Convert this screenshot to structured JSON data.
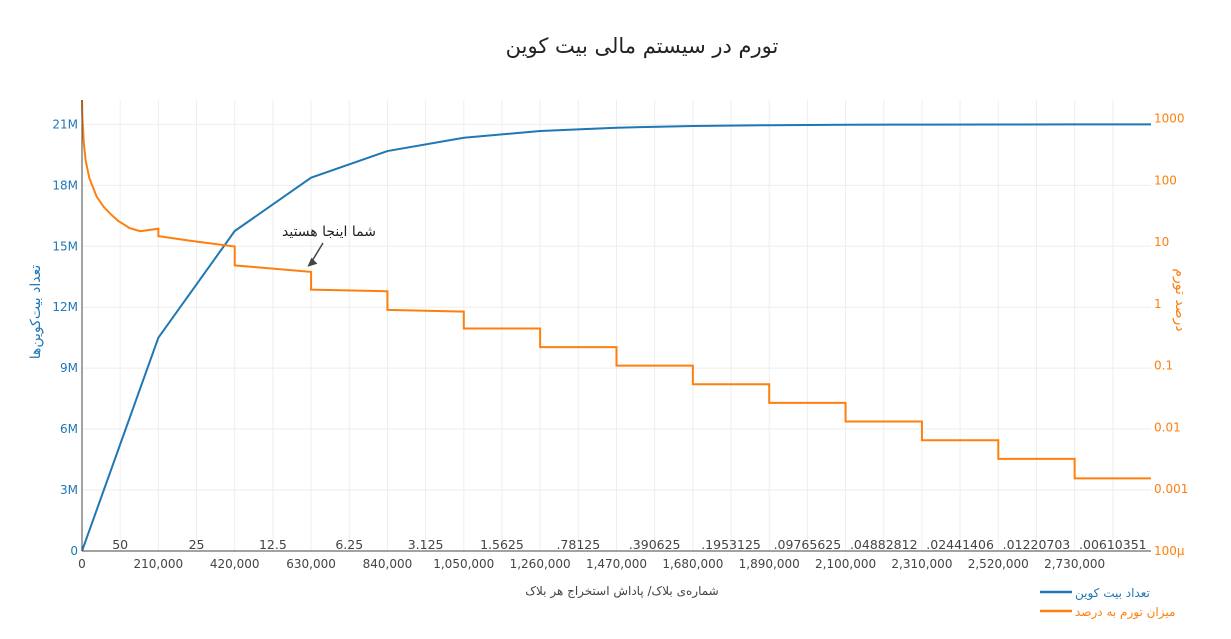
{
  "chart_data": {
    "type": "line",
    "title": "تورم در سیستم مالی بیت کوین",
    "xlabel": "شماره‌ی بلاک/ پاداش استخراج هر بلاک",
    "ylabel_left": "تعداد بیت‌کوین‌ها",
    "ylabel_right": "درصد تورم",
    "x_ticks": [
      "0",
      "210,000",
      "420,000",
      "630,000",
      "840,000",
      "1,050,000",
      "1,260,000",
      "1,470,000",
      "1,680,000",
      "1,890,000",
      "2,100,000",
      "2,310,000",
      "2,520,000",
      "2,730,000"
    ],
    "x_tick_values": [
      0,
      210000,
      420000,
      630000,
      840000,
      1050000,
      1260000,
      1470000,
      1680000,
      1890000,
      2100000,
      2310000,
      2520000,
      2730000
    ],
    "xlim": [
      0,
      2940000
    ],
    "y_left_ticks": [
      "0",
      "3M",
      "6M",
      "9M",
      "12M",
      "15M",
      "18M",
      "21M"
    ],
    "y_left_tick_values": [
      0,
      3000000,
      6000000,
      9000000,
      12000000,
      15000000,
      18000000,
      21000000
    ],
    "ylim_left": [
      0,
      22200000
    ],
    "y_right_ticks": [
      "100µ",
      "0.001",
      "0.01",
      "0.1",
      "1",
      "10",
      "100",
      "1000"
    ],
    "y_right_tick_values": [
      0.0001,
      0.001,
      0.01,
      0.1,
      1,
      10,
      100,
      1000
    ],
    "ylim_right_log": [
      0.0001,
      2000
    ],
    "block_rewards": [
      "50",
      "25",
      "12.5",
      "6.25",
      "3.125",
      "1.5625",
      ".78125",
      ".390625",
      ".1953125",
      ".09765625",
      ".04882812",
      ".02441406",
      ".01220703",
      ".00610351"
    ],
    "annotation": {
      "text": "شما اینجا هستید",
      "x": 620000,
      "y_right": 4.0
    },
    "series": [
      {
        "name": "تعداد بیت کوین",
        "color": "#1f77b4",
        "axis": "left",
        "x": [
          0,
          210000,
          420000,
          630000,
          840000,
          1050000,
          1260000,
          1470000,
          1680000,
          1890000,
          2100000,
          2310000,
          2520000,
          2730000,
          2940000
        ],
        "values": [
          0,
          10500000,
          15750000,
          18375000,
          19687500,
          20343750,
          20671875,
          20835937,
          20917968,
          20958984,
          20979492,
          20989746,
          20994873,
          20997436,
          20998718
        ]
      },
      {
        "name": "میزان تورم به درصد",
        "color": "#ff7f0e",
        "axis": "right",
        "x": [
          0,
          1000,
          5000,
          10000,
          20000,
          40000,
          60000,
          80000,
          100000,
          130000,
          160000,
          209999,
          210000,
          300000,
          419999,
          420000,
          629999,
          630000,
          839999,
          840000,
          1049999,
          1050000,
          1259999,
          1260000,
          1469999,
          1470000,
          1679999,
          1680000,
          1889999,
          1890000,
          2099999,
          2100000,
          2309999,
          2310000,
          2519999,
          2520000,
          2729999,
          2730000,
          2940000
        ],
        "values": [
          2000,
          1100,
          400,
          210,
          110,
          55,
          37,
          28,
          22,
          17,
          15,
          16.5,
          12.5,
          10.5,
          8.5,
          4.2,
          3.3,
          1.7,
          1.6,
          0.8,
          0.75,
          0.4,
          0.4,
          0.2,
          0.2,
          0.1,
          0.1,
          0.05,
          0.05,
          0.025,
          0.025,
          0.0125,
          0.0125,
          0.0062,
          0.0062,
          0.0031,
          0.0031,
          0.0015,
          0.0015
        ]
      }
    ]
  }
}
